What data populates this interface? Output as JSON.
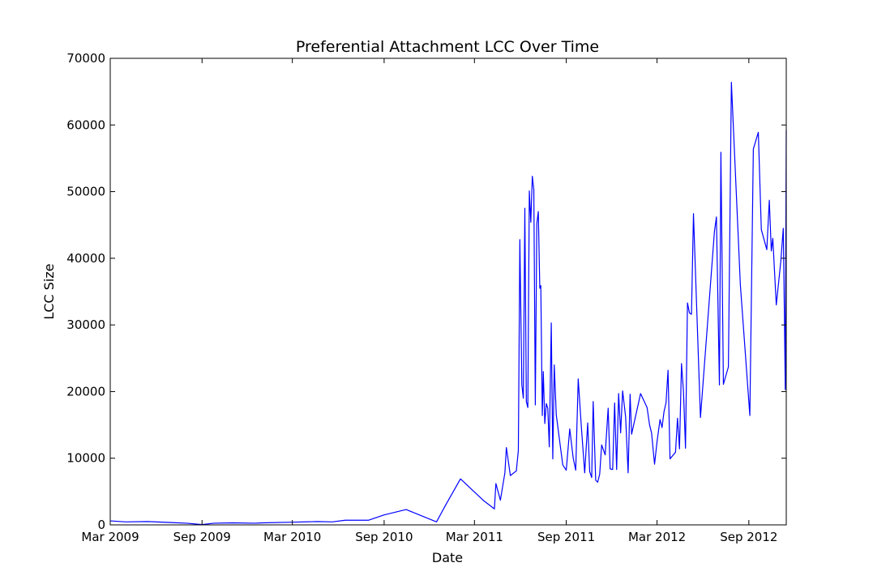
{
  "chart_data": {
    "type": "line",
    "title": "Preferential Attachment LCC Over Time",
    "xlabel": "Date",
    "ylabel": "LCC Size",
    "xlim": [
      "2009-03-01",
      "2012-11-15"
    ],
    "ylim": [
      0,
      70000
    ],
    "x_ticks": [
      "2009-03-01",
      "2009-09-01",
      "2010-03-01",
      "2010-09-01",
      "2011-03-01",
      "2011-09-01",
      "2012-03-01",
      "2012-09-01"
    ],
    "x_tick_labels": [
      "Mar 2009",
      "Sep 2009",
      "Mar 2010",
      "Sep 2010",
      "Mar 2011",
      "Sep 2011",
      "Mar 2012",
      "Sep 2012"
    ],
    "y_ticks": [
      0,
      10000,
      20000,
      30000,
      40000,
      50000,
      60000,
      70000
    ],
    "y_tick_labels": [
      "0",
      "10000",
      "20000",
      "30000",
      "40000",
      "50000",
      "60000",
      "70000"
    ],
    "grid": false,
    "legend": "none",
    "series": [
      {
        "color": "#0000ff",
        "points": [
          [
            "2009-03-01",
            600
          ],
          [
            "2009-04-01",
            450
          ],
          [
            "2009-05-15",
            500
          ],
          [
            "2009-07-01",
            350
          ],
          [
            "2009-08-01",
            250
          ],
          [
            "2009-09-01",
            50
          ],
          [
            "2009-09-25",
            250
          ],
          [
            "2009-11-01",
            300
          ],
          [
            "2009-12-15",
            250
          ],
          [
            "2010-01-01",
            300
          ],
          [
            "2010-03-01",
            400
          ],
          [
            "2010-04-20",
            500
          ],
          [
            "2010-05-20",
            450
          ],
          [
            "2010-06-15",
            700
          ],
          [
            "2010-08-01",
            700
          ],
          [
            "2010-09-01",
            1500
          ],
          [
            "2010-10-15",
            2300
          ],
          [
            "2010-12-15",
            450
          ],
          [
            "2011-01-01",
            2800
          ],
          [
            "2011-02-01",
            6900
          ],
          [
            "2011-03-20",
            3600
          ],
          [
            "2011-04-10",
            2400
          ],
          [
            "2011-04-13",
            6200
          ],
          [
            "2011-04-22",
            3700
          ],
          [
            "2011-05-01",
            7800
          ],
          [
            "2011-05-04",
            11600
          ],
          [
            "2011-05-12",
            7400
          ],
          [
            "2011-05-24",
            8100
          ],
          [
            "2011-05-28",
            11200
          ],
          [
            "2011-05-31",
            42800
          ],
          [
            "2011-06-04",
            21000
          ],
          [
            "2011-06-07",
            19000
          ],
          [
            "2011-06-10",
            47500
          ],
          [
            "2011-06-13",
            18500
          ],
          [
            "2011-06-16",
            17600
          ],
          [
            "2011-06-19",
            50100
          ],
          [
            "2011-06-22",
            45400
          ],
          [
            "2011-06-25",
            52300
          ],
          [
            "2011-06-28",
            50300
          ],
          [
            "2011-07-01",
            18000
          ],
          [
            "2011-07-04",
            45200
          ],
          [
            "2011-07-07",
            47000
          ],
          [
            "2011-07-10",
            35500
          ],
          [
            "2011-07-12",
            35900
          ],
          [
            "2011-07-15",
            16400
          ],
          [
            "2011-07-17",
            23000
          ],
          [
            "2011-07-20",
            15200
          ],
          [
            "2011-07-23",
            18200
          ],
          [
            "2011-07-26",
            17500
          ],
          [
            "2011-07-29",
            11700
          ],
          [
            "2011-08-02",
            30300
          ],
          [
            "2011-08-05",
            9900
          ],
          [
            "2011-08-08",
            24000
          ],
          [
            "2011-08-12",
            16500
          ],
          [
            "2011-08-25",
            9000
          ],
          [
            "2011-09-01",
            8200
          ],
          [
            "2011-09-08",
            14400
          ],
          [
            "2011-09-15",
            10000
          ],
          [
            "2011-09-20",
            8200
          ],
          [
            "2011-09-25",
            21900
          ],
          [
            "2011-10-01",
            15000
          ],
          [
            "2011-10-08",
            7800
          ],
          [
            "2011-10-14",
            15300
          ],
          [
            "2011-10-18",
            8000
          ],
          [
            "2011-10-22",
            7100
          ],
          [
            "2011-10-25",
            18500
          ],
          [
            "2011-10-30",
            6700
          ],
          [
            "2011-11-03",
            6400
          ],
          [
            "2011-11-07",
            7600
          ],
          [
            "2011-11-11",
            12000
          ],
          [
            "2011-11-18",
            10500
          ],
          [
            "2011-11-24",
            17500
          ],
          [
            "2011-11-28",
            8400
          ],
          [
            "2011-12-03",
            8300
          ],
          [
            "2011-12-07",
            18300
          ],
          [
            "2011-12-11",
            8300
          ],
          [
            "2011-12-15",
            19700
          ],
          [
            "2011-12-19",
            13800
          ],
          [
            "2011-12-23",
            20100
          ],
          [
            "2011-12-29",
            16200
          ],
          [
            "2012-01-03",
            7800
          ],
          [
            "2012-01-07",
            19600
          ],
          [
            "2012-01-10",
            13600
          ],
          [
            "2012-01-28",
            19700
          ],
          [
            "2012-02-10",
            17600
          ],
          [
            "2012-02-15",
            15000
          ],
          [
            "2012-02-19",
            13800
          ],
          [
            "2012-02-25",
            9100
          ],
          [
            "2012-03-01",
            12500
          ],
          [
            "2012-03-07",
            15800
          ],
          [
            "2012-03-11",
            14600
          ],
          [
            "2012-03-15",
            17000
          ],
          [
            "2012-03-19",
            18300
          ],
          [
            "2012-03-23",
            23200
          ],
          [
            "2012-03-27",
            9900
          ],
          [
            "2012-04-07",
            10900
          ],
          [
            "2012-04-11",
            16000
          ],
          [
            "2012-04-15",
            11400
          ],
          [
            "2012-04-19",
            24200
          ],
          [
            "2012-04-23",
            20000
          ],
          [
            "2012-04-27",
            11500
          ],
          [
            "2012-05-01",
            33300
          ],
          [
            "2012-05-05",
            31800
          ],
          [
            "2012-05-09",
            31600
          ],
          [
            "2012-05-13",
            46700
          ],
          [
            "2012-05-27",
            16100
          ],
          [
            "2012-06-10",
            30000
          ],
          [
            "2012-06-24",
            44000
          ],
          [
            "2012-06-28",
            46200
          ],
          [
            "2012-07-04",
            21000
          ],
          [
            "2012-07-07",
            55900
          ],
          [
            "2012-07-12",
            21100
          ],
          [
            "2012-07-22",
            23700
          ],
          [
            "2012-07-28",
            66400
          ],
          [
            "2012-08-15",
            36000
          ],
          [
            "2012-09-03",
            16400
          ],
          [
            "2012-09-10",
            56400
          ],
          [
            "2012-09-20",
            58900
          ],
          [
            "2012-09-26",
            44300
          ],
          [
            "2012-10-07",
            41300
          ],
          [
            "2012-10-12",
            48700
          ],
          [
            "2012-10-16",
            41100
          ],
          [
            "2012-10-19",
            43000
          ],
          [
            "2012-10-26",
            33000
          ],
          [
            "2012-11-04",
            39500
          ],
          [
            "2012-11-09",
            44500
          ],
          [
            "2012-11-11",
            33000
          ],
          [
            "2012-11-13",
            20300
          ],
          [
            "2012-11-15",
            59200
          ]
        ]
      }
    ]
  }
}
